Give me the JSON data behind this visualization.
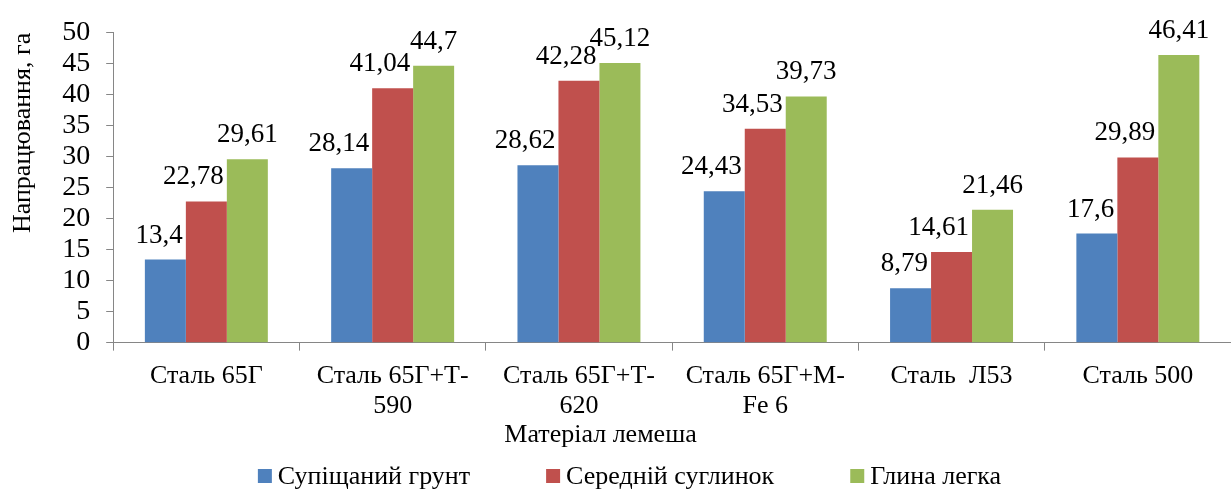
{
  "chart_data": {
    "type": "bar",
    "xlabel": "Матеріал лемеша",
    "ylabel": "Напрацювання, га",
    "categories": [
      "Сталь 65Г",
      "Сталь 65Г+Т-590",
      "Сталь 65Г+Т-620",
      "Сталь 65Г+М-Fe 6",
      "Сталь  Л53",
      "Сталь 500"
    ],
    "series": [
      {
        "name": "Супіщаний грунт",
        "color": "#4f81bd",
        "values": [
          13.4,
          28.14,
          28.62,
          24.43,
          8.79,
          17.6
        ],
        "value_labels": [
          "13,4",
          "28,14",
          "28,62",
          "24,43",
          "8,79",
          "17,6"
        ]
      },
      {
        "name": "Середній суглинок",
        "color": "#c0504d",
        "values": [
          22.78,
          41.04,
          42.28,
          34.53,
          14.61,
          29.89
        ],
        "value_labels": [
          "22,78",
          "41,04",
          "42,28",
          "34,53",
          "14,61",
          "29,89"
        ]
      },
      {
        "name": "Глина легка",
        "color": "#9bbb59",
        "values": [
          29.61,
          44.7,
          45.12,
          39.73,
          21.46,
          46.41
        ],
        "value_labels": [
          "29,61",
          "44,7",
          "45,12",
          "39,73",
          "21,46",
          "46,41"
        ]
      }
    ],
    "ylim": [
      0,
      50
    ],
    "yticks": [
      0,
      5,
      10,
      15,
      20,
      25,
      30,
      35,
      40,
      45,
      50
    ],
    "grid": false,
    "legend": "bottom"
  }
}
